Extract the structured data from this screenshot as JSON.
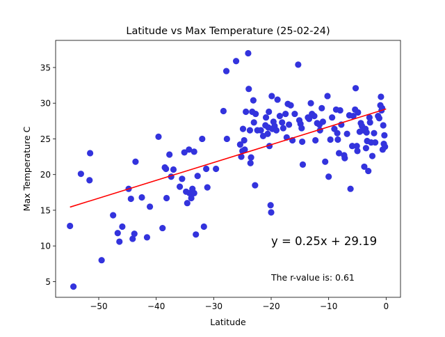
{
  "chart_data": {
    "type": "scatter",
    "title": "Latitude vs Max Temperature (25-02-24)",
    "xlabel": "Latitude",
    "ylabel": "Max Temperature C",
    "xlim": [
      -57.5,
      2.5
    ],
    "ylim": [
      2.8,
      38.8
    ],
    "xticks": [
      -50,
      -40,
      -30,
      -20,
      -10,
      0
    ],
    "yticks": [
      5,
      10,
      15,
      20,
      25,
      30,
      35
    ],
    "xtick_labels": [
      "−50",
      "−40",
      "−30",
      "−20",
      "−10",
      "0"
    ],
    "ytick_labels": [
      "5",
      "10",
      "15",
      "20",
      "25",
      "30",
      "35"
    ],
    "grid": false,
    "point_color": "#3333dd",
    "line_color": "#ff0000",
    "annotation_color": "#008000",
    "regression": {
      "slope": 0.25,
      "intercept": 29.19,
      "x_start": -55,
      "x_end": 0
    },
    "equation_label": "y =  0.25x +  29.19",
    "r_value_label": "The r-value is: 0.61",
    "points": [
      [
        -55,
        12.8
      ],
      [
        -54.4,
        4.3
      ],
      [
        -53.1,
        20.1
      ],
      [
        -51.6,
        19.2
      ],
      [
        -51.5,
        23.0
      ],
      [
        -49.5,
        8.0
      ],
      [
        -47.5,
        14.3
      ],
      [
        -46.7,
        11.8
      ],
      [
        -46.4,
        10.6
      ],
      [
        -45.9,
        12.7
      ],
      [
        -44.8,
        18.0
      ],
      [
        -44.4,
        16.6
      ],
      [
        -44.1,
        11.0
      ],
      [
        -43.8,
        11.7
      ],
      [
        -43.6,
        21.8
      ],
      [
        -42.5,
        16.8
      ],
      [
        -41.6,
        11.2
      ],
      [
        -41.1,
        15.5
      ],
      [
        -39.6,
        25.3
      ],
      [
        -38.9,
        12.5
      ],
      [
        -38.5,
        21.0
      ],
      [
        -38.3,
        20.8
      ],
      [
        -38.2,
        16.7
      ],
      [
        -37.7,
        22.8
      ],
      [
        -37.4,
        19.7
      ],
      [
        -37.0,
        20.7
      ],
      [
        -35.9,
        18.3
      ],
      [
        -35.5,
        19.4
      ],
      [
        -35.1,
        23.1
      ],
      [
        -34.8,
        17.6
      ],
      [
        -34.6,
        16.0
      ],
      [
        -34.3,
        23.5
      ],
      [
        -34.2,
        17.4
      ],
      [
        -33.9,
        16.7
      ],
      [
        -33.7,
        18.0
      ],
      [
        -33.4,
        17.4
      ],
      [
        -33.4,
        23.2
      ],
      [
        -33.1,
        11.6
      ],
      [
        -32.8,
        19.8
      ],
      [
        -32.0,
        25.0
      ],
      [
        -31.7,
        12.7
      ],
      [
        -31.3,
        20.8
      ],
      [
        -31.1,
        18.2
      ],
      [
        -29.6,
        20.8
      ],
      [
        -28.3,
        28.9
      ],
      [
        -27.8,
        34.5
      ],
      [
        -27.7,
        25.0
      ],
      [
        -26.1,
        35.9
      ],
      [
        -25.4,
        24.2
      ],
      [
        -25.2,
        22.5
      ],
      [
        -25.0,
        23.3
      ],
      [
        -24.9,
        26.4
      ],
      [
        -24.7,
        24.8
      ],
      [
        -24.6,
        23.5
      ],
      [
        -24.4,
        28.8
      ],
      [
        -24.0,
        37.0
      ],
      [
        -23.9,
        32.0
      ],
      [
        -23.7,
        26.2
      ],
      [
        -23.6,
        21.6
      ],
      [
        -23.5,
        22.4
      ],
      [
        -23.3,
        28.8
      ],
      [
        -23.1,
        30.4
      ],
      [
        -23.0,
        27.3
      ],
      [
        -22.8,
        18.5
      ],
      [
        -22.7,
        28.5
      ],
      [
        -22.4,
        26.2
      ],
      [
        -21.8,
        26.2
      ],
      [
        -21.4,
        25.4
      ],
      [
        -21.0,
        26.9
      ],
      [
        -20.9,
        28.0
      ],
      [
        -20.6,
        25.7
      ],
      [
        -20.5,
        26.6
      ],
      [
        -20.4,
        28.8
      ],
      [
        -20.3,
        24.0
      ],
      [
        -20.1,
        15.7
      ],
      [
        -20.0,
        14.7
      ],
      [
        -19.9,
        31.0
      ],
      [
        -19.8,
        26.4
      ],
      [
        -19.6,
        27.4
      ],
      [
        -19.4,
        26.8
      ],
      [
        -19.1,
        26.2
      ],
      [
        -18.9,
        30.5
      ],
      [
        -18.5,
        28.2
      ],
      [
        -18.1,
        27.3
      ],
      [
        -17.9,
        26.5
      ],
      [
        -17.5,
        28.5
      ],
      [
        -17.3,
        25.2
      ],
      [
        -17.1,
        29.9
      ],
      [
        -16.9,
        27.0
      ],
      [
        -16.6,
        29.7
      ],
      [
        -16.3,
        24.8
      ],
      [
        -15.9,
        28.5
      ],
      [
        -15.3,
        35.4
      ],
      [
        -15.1,
        27.6
      ],
      [
        -14.9,
        27.1
      ],
      [
        -14.7,
        26.5
      ],
      [
        -14.6,
        24.6
      ],
      [
        -14.5,
        21.4
      ],
      [
        -13.6,
        28.0
      ],
      [
        -13.4,
        27.8
      ],
      [
        -13.1,
        30.0
      ],
      [
        -12.9,
        28.5
      ],
      [
        -12.5,
        28.2
      ],
      [
        -12.3,
        24.8
      ],
      [
        -12.0,
        27.2
      ],
      [
        -11.6,
        27.0
      ],
      [
        -11.5,
        26.2
      ],
      [
        -11.2,
        29.3
      ],
      [
        -11.0,
        27.4
      ],
      [
        -10.6,
        21.8
      ],
      [
        -10.2,
        31.0
      ],
      [
        -10.0,
        19.7
      ],
      [
        -9.7,
        24.9
      ],
      [
        -9.4,
        28.0
      ],
      [
        -9.0,
        26.4
      ],
      [
        -8.7,
        29.1
      ],
      [
        -8.5,
        25.8
      ],
      [
        -8.4,
        24.9
      ],
      [
        -8.2,
        23.0
      ],
      [
        -8.0,
        29.0
      ],
      [
        -7.8,
        27.0
      ],
      [
        -7.3,
        22.7
      ],
      [
        -7.2,
        22.3
      ],
      [
        -6.8,
        25.7
      ],
      [
        -6.4,
        28.3
      ],
      [
        -6.2,
        18.0
      ],
      [
        -5.9,
        24.0
      ],
      [
        -5.7,
        28.2
      ],
      [
        -5.4,
        29.1
      ],
      [
        -5.3,
        32.1
      ],
      [
        -5.1,
        24.0
      ],
      [
        -5.0,
        23.3
      ],
      [
        -4.9,
        28.7
      ],
      [
        -4.6,
        26.0
      ],
      [
        -4.4,
        27.2
      ],
      [
        -4.2,
        26.8
      ],
      [
        -4.0,
        26.2
      ],
      [
        -3.8,
        21.1
      ],
      [
        -3.6,
        26.4
      ],
      [
        -3.5,
        23.7
      ],
      [
        -3.4,
        25.9
      ],
      [
        -3.3,
        24.7
      ],
      [
        -3.1,
        20.5
      ],
      [
        -2.9,
        28.0
      ],
      [
        -2.8,
        27.3
      ],
      [
        -2.6,
        24.5
      ],
      [
        -2.4,
        22.6
      ],
      [
        -2.1,
        25.8
      ],
      [
        -1.9,
        24.5
      ],
      [
        -1.4,
        28.2
      ],
      [
        -1.2,
        27.9
      ],
      [
        -1.0,
        29.7
      ],
      [
        -0.9,
        30.9
      ],
      [
        -0.8,
        29.0
      ],
      [
        -0.7,
        29.3
      ],
      [
        -0.6,
        23.5
      ],
      [
        -0.5,
        26.9
      ],
      [
        -0.4,
        24.3
      ],
      [
        -0.3,
        25.5
      ],
      [
        -0.2,
        23.9
      ]
    ]
  }
}
